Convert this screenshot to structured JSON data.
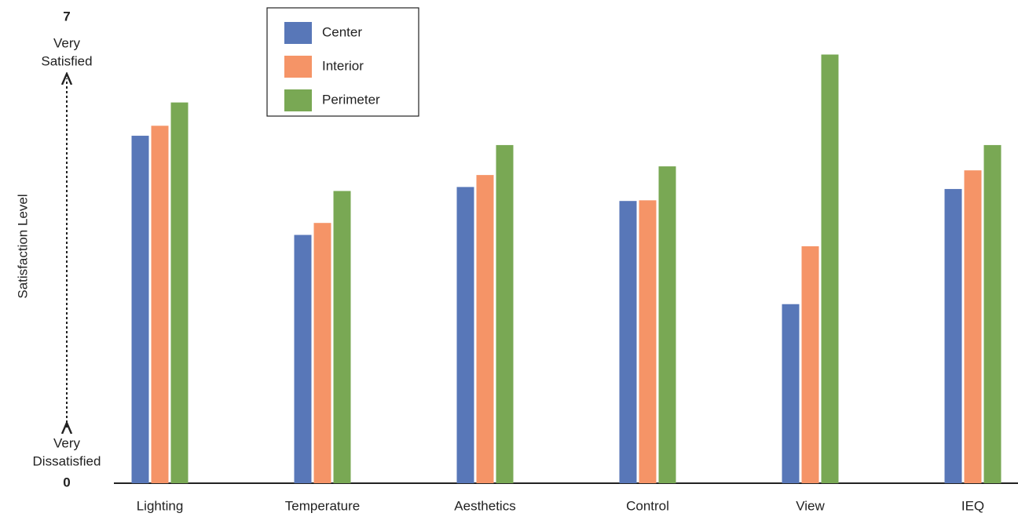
{
  "chart_data": {
    "type": "bar",
    "y_label": "Satisfaction Level",
    "y_max_label": [
      "Very",
      "Satisfied"
    ],
    "y_min_label": [
      "Very",
      "Dissatisfied"
    ],
    "categories": [
      "Lighting",
      "Temperature",
      "Aesthetics",
      "Control",
      "View",
      "IEQ"
    ],
    "series": [
      {
        "name": "Center",
        "color": "#5877b8",
        "values": [
          5.22,
          3.73,
          4.45,
          4.24,
          2.69,
          4.42
        ]
      },
      {
        "name": "Interior",
        "color": "#f59467",
        "values": [
          5.37,
          3.91,
          4.63,
          4.25,
          3.56,
          4.7
        ]
      },
      {
        "name": "Perimeter",
        "color": "#79a854",
        "values": [
          5.72,
          4.39,
          5.08,
          4.76,
          6.44,
          5.08
        ]
      }
    ],
    "ylim": [
      0,
      7
    ],
    "yticks": [
      0,
      7
    ],
    "grid": false,
    "legend": "top-left"
  }
}
